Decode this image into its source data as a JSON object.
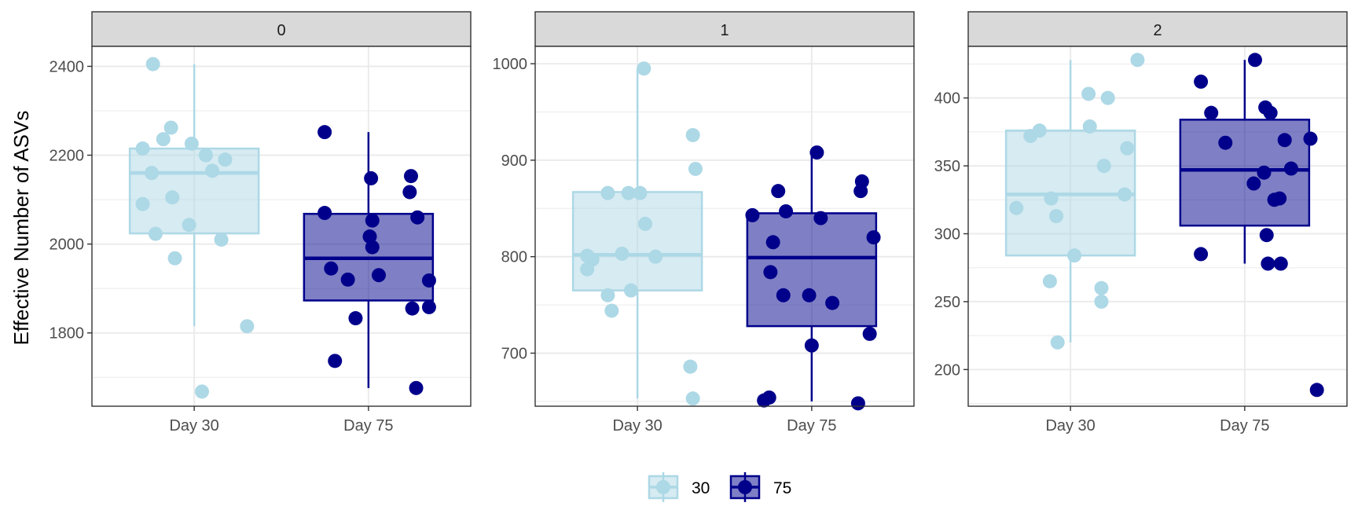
{
  "chart_data": {
    "type": "box",
    "ylabel": "Effective Number of ASVs",
    "xlabel": "",
    "x_categories": [
      "Day 30",
      "Day 75"
    ],
    "legend": {
      "title": "",
      "position": "bottom",
      "entries": [
        {
          "label": "30",
          "fill": "#add8e6",
          "stroke": "#add8e6"
        },
        {
          "label": "75",
          "fill": "#00008b",
          "stroke": "#00008b"
        }
      ]
    },
    "box_fill_opacity": 0.5,
    "facets": [
      {
        "strip": "0",
        "ylim": [
          1635,
          2445
        ],
        "yticks": [
          1800,
          2000,
          2200,
          2400
        ],
        "groups": [
          {
            "category": "Day 30",
            "legend_key": "30",
            "box": {
              "lower_whisker": 1815,
              "q1": 2024,
              "median": 2160,
              "q3": 2215,
              "upper_whisker": 2405
            },
            "points": [
              {
                "x": 0.18,
                "y": 2405
              },
              {
                "x": 0.1,
                "y": 2215
              },
              {
                "x": 0.32,
                "y": 2262
              },
              {
                "x": 0.26,
                "y": 2236
              },
              {
                "x": 0.48,
                "y": 2226
              },
              {
                "x": 0.59,
                "y": 2200
              },
              {
                "x": 0.74,
                "y": 2190
              },
              {
                "x": 0.17,
                "y": 2160
              },
              {
                "x": 0.64,
                "y": 2165
              },
              {
                "x": 0.33,
                "y": 2105
              },
              {
                "x": 0.1,
                "y": 2090
              },
              {
                "x": 0.2,
                "y": 2023
              },
              {
                "x": 0.46,
                "y": 2043
              },
              {
                "x": 0.71,
                "y": 2010
              },
              {
                "x": 0.35,
                "y": 1968
              },
              {
                "x": 0.91,
                "y": 1815
              },
              {
                "x": 0.56,
                "y": 1668
              }
            ]
          },
          {
            "category": "Day 75",
            "legend_key": "75",
            "box": {
              "lower_whisker": 1676,
              "q1": 1873,
              "median": 1968,
              "q3": 2068,
              "upper_whisker": 2252
            },
            "points": [
              {
                "x": 0.16,
                "y": 2252
              },
              {
                "x": 0.52,
                "y": 2148
              },
              {
                "x": 0.83,
                "y": 2153
              },
              {
                "x": 0.82,
                "y": 2117
              },
              {
                "x": 0.16,
                "y": 2070
              },
              {
                "x": 0.53,
                "y": 2053
              },
              {
                "x": 0.88,
                "y": 2060
              },
              {
                "x": 0.51,
                "y": 2017
              },
              {
                "x": 0.53,
                "y": 1993
              },
              {
                "x": 0.21,
                "y": 1945
              },
              {
                "x": 0.34,
                "y": 1920
              },
              {
                "x": 0.58,
                "y": 1930
              },
              {
                "x": 0.97,
                "y": 1918
              },
              {
                "x": 0.4,
                "y": 1833
              },
              {
                "x": 0.84,
                "y": 1855
              },
              {
                "x": 0.97,
                "y": 1858
              },
              {
                "x": 0.24,
                "y": 1737
              },
              {
                "x": 0.87,
                "y": 1676
              }
            ]
          }
        ]
      },
      {
        "strip": "1",
        "ylim": [
          645,
          1018
        ],
        "yticks": [
          700,
          800,
          900,
          1000
        ],
        "groups": [
          {
            "category": "Day 30",
            "legend_key": "30",
            "box": {
              "lower_whisker": 653,
              "q1": 765,
              "median": 802,
              "q3": 867,
              "upper_whisker": 995
            },
            "points": [
              {
                "x": 0.55,
                "y": 995
              },
              {
                "x": 0.93,
                "y": 926
              },
              {
                "x": 0.95,
                "y": 891
              },
              {
                "x": 0.27,
                "y": 866
              },
              {
                "x": 0.43,
                "y": 866
              },
              {
                "x": 0.52,
                "y": 866
              },
              {
                "x": 0.56,
                "y": 834
              },
              {
                "x": 0.11,
                "y": 801
              },
              {
                "x": 0.38,
                "y": 803
              },
              {
                "x": 0.64,
                "y": 800
              },
              {
                "x": 0.15,
                "y": 797
              },
              {
                "x": 0.11,
                "y": 787
              },
              {
                "x": 0.45,
                "y": 765
              },
              {
                "x": 0.27,
                "y": 760
              },
              {
                "x": 0.3,
                "y": 744
              },
              {
                "x": 0.91,
                "y": 686
              },
              {
                "x": 0.93,
                "y": 653
              }
            ]
          },
          {
            "category": "Day 75",
            "legend_key": "75",
            "box": {
              "lower_whisker": 650,
              "q1": 728,
              "median": 799,
              "q3": 845,
              "upper_whisker": 908
            },
            "points": [
              {
                "x": 0.54,
                "y": 908
              },
              {
                "x": 0.89,
                "y": 878
              },
              {
                "x": 0.88,
                "y": 868
              },
              {
                "x": 0.24,
                "y": 868
              },
              {
                "x": 0.3,
                "y": 847
              },
              {
                "x": 0.04,
                "y": 843
              },
              {
                "x": 0.57,
                "y": 840
              },
              {
                "x": 0.98,
                "y": 820
              },
              {
                "x": 0.2,
                "y": 815
              },
              {
                "x": 0.18,
                "y": 784
              },
              {
                "x": 0.28,
                "y": 760
              },
              {
                "x": 0.48,
                "y": 760
              },
              {
                "x": 0.66,
                "y": 752
              },
              {
                "x": 0.5,
                "y": 708
              },
              {
                "x": 0.95,
                "y": 720
              },
              {
                "x": 0.17,
                "y": 654
              },
              {
                "x": 0.13,
                "y": 651
              },
              {
                "x": 0.86,
                "y": 648
              }
            ]
          }
        ]
      },
      {
        "strip": "2",
        "ylim": [
          173,
          438
        ],
        "yticks": [
          200,
          250,
          300,
          350,
          400
        ],
        "groups": [
          {
            "category": "Day 30",
            "legend_key": "30",
            "box": {
              "lower_whisker": 220,
              "q1": 284,
              "median": 329,
              "q3": 376,
              "upper_whisker": 428
            },
            "points": [
              {
                "x": 1.02,
                "y": 428
              },
              {
                "x": 0.64,
                "y": 403
              },
              {
                "x": 0.79,
                "y": 400
              },
              {
                "x": 0.65,
                "y": 379
              },
              {
                "x": 0.26,
                "y": 376
              },
              {
                "x": 0.19,
                "y": 372
              },
              {
                "x": 0.94,
                "y": 363
              },
              {
                "x": 0.76,
                "y": 350
              },
              {
                "x": 0.92,
                "y": 329
              },
              {
                "x": 0.35,
                "y": 326
              },
              {
                "x": 0.08,
                "y": 319
              },
              {
                "x": 0.39,
                "y": 313
              },
              {
                "x": 0.53,
                "y": 284
              },
              {
                "x": 0.34,
                "y": 265
              },
              {
                "x": 0.74,
                "y": 260
              },
              {
                "x": 0.74,
                "y": 250
              },
              {
                "x": 0.4,
                "y": 220
              }
            ]
          },
          {
            "category": "Day 75",
            "legend_key": "75",
            "box": {
              "lower_whisker": 278,
              "q1": 306,
              "median": 347,
              "q3": 384,
              "upper_whisker": 428
            },
            "points": [
              {
                "x": 0.58,
                "y": 428
              },
              {
                "x": 0.16,
                "y": 412
              },
              {
                "x": 0.66,
                "y": 393
              },
              {
                "x": 0.7,
                "y": 389
              },
              {
                "x": 0.24,
                "y": 389
              },
              {
                "x": 0.81,
                "y": 369
              },
              {
                "x": 0.35,
                "y": 367
              },
              {
                "x": 1.01,
                "y": 370
              },
              {
                "x": 0.86,
                "y": 348
              },
              {
                "x": 0.65,
                "y": 345
              },
              {
                "x": 0.57,
                "y": 337
              },
              {
                "x": 0.73,
                "y": 325
              },
              {
                "x": 0.77,
                "y": 326
              },
              {
                "x": 0.67,
                "y": 299
              },
              {
                "x": 0.16,
                "y": 285
              },
              {
                "x": 0.68,
                "y": 278
              },
              {
                "x": 0.78,
                "y": 278
              },
              {
                "x": 1.06,
                "y": 185
              }
            ]
          }
        ]
      }
    ]
  }
}
